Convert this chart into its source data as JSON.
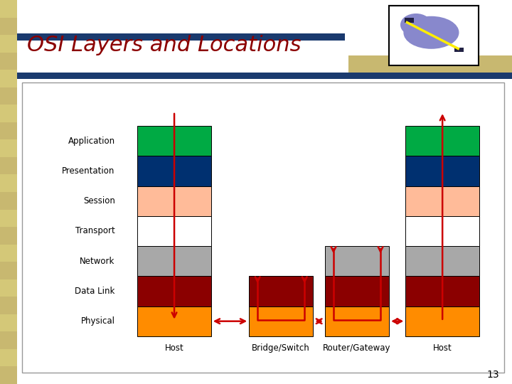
{
  "title": "OSI Layers and Locations",
  "title_color": "#8B0000",
  "title_fontsize": 22,
  "background_slide": "#e8e8d8",
  "layer_colors": [
    "#FF8C00",
    "#8B0000",
    "#A8A8A8",
    "#FFFFFF",
    "#FFBB99",
    "#003070",
    "#00AA44"
  ],
  "layer_labels": [
    "Physical",
    "Data Link",
    "Network",
    "Transport",
    "Session",
    "Presentation",
    "Application"
  ],
  "page_number": "13",
  "arrow_color": "#CC0000",
  "header_blue": "#1a3a6e",
  "header_tan": "#c8b870"
}
